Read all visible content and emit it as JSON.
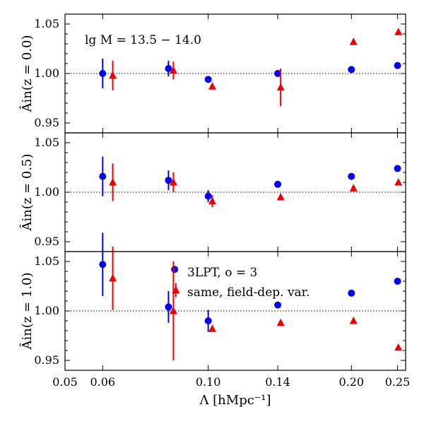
{
  "chart_data": {
    "type": "scatter",
    "x_scale": "log",
    "xlim": [
      0.05,
      0.26
    ],
    "x_ticks": [
      0.05,
      0.06,
      0.1,
      0.14,
      0.2,
      0.25
    ],
    "x_tick_labels": [
      "0.05",
      "0.06",
      "0.10",
      "0.14",
      "0.20",
      "0.25"
    ],
    "xlabel": "Λ [hMpc⁻¹]",
    "legend": {
      "placement": "center of bottom panel",
      "entries": [
        {
          "label": "3LPT, o = 3",
          "marker": "circle",
          "color": "#0000ee"
        },
        {
          "label": "same, field-dep. var.",
          "marker": "triangle",
          "color": "#ee0000"
        }
      ]
    },
    "panels": [
      {
        "ylabel": "Âin(z = 0.0)",
        "annotation": "lg M = 13.5 − 14.0",
        "ylim": [
          0.94,
          1.06
        ],
        "y_ticks": [
          0.95,
          1.0,
          1.05
        ],
        "y_tick_labels": [
          "0.95",
          "1.00",
          "1.05"
        ],
        "reference_line": 1.0,
        "series": [
          {
            "name": "3LPT, o = 3",
            "marker": "circle",
            "color": "#0000ee",
            "points": [
              {
                "x": 0.06,
                "y": 1.0,
                "err": 0.015
              },
              {
                "x": 0.0825,
                "y": 1.005,
                "err": 0.008
              },
              {
                "x": 0.1,
                "y": 0.994,
                "err": 0.0
              },
              {
                "x": 0.14,
                "y": 1.0,
                "err": 0.0
              },
              {
                "x": 0.2,
                "y": 1.004,
                "err": 0.0
              },
              {
                "x": 0.25,
                "y": 1.008,
                "err": 0.0
              }
            ]
          },
          {
            "name": "same, field-dep. var.",
            "marker": "triangle",
            "color": "#ee0000",
            "points": [
              {
                "x": 0.063,
                "y": 0.998,
                "err": 0.015
              },
              {
                "x": 0.0845,
                "y": 1.003,
                "err": 0.009
              },
              {
                "x": 0.102,
                "y": 0.987,
                "err": 0.0
              },
              {
                "x": 0.142,
                "y": 0.986,
                "err": 0.019
              },
              {
                "x": 0.202,
                "y": 1.032,
                "err": 0.0
              },
              {
                "x": 0.251,
                "y": 1.042,
                "err": 0.0
              }
            ]
          }
        ]
      },
      {
        "ylabel": "Âin(z = 0.5)",
        "annotation": "",
        "ylim": [
          0.94,
          1.06
        ],
        "y_ticks": [
          0.95,
          1.0,
          1.05
        ],
        "y_tick_labels": [
          "0.95",
          "1.00",
          "1.05"
        ],
        "reference_line": 1.0,
        "series": [
          {
            "name": "3LPT, o = 3",
            "marker": "circle",
            "color": "#0000ee",
            "points": [
              {
                "x": 0.06,
                "y": 1.016,
                "err": 0.02
              },
              {
                "x": 0.0825,
                "y": 1.012,
                "err": 0.01
              },
              {
                "x": 0.1,
                "y": 0.996,
                "err": 0.006
              },
              {
                "x": 0.14,
                "y": 1.008,
                "err": 0.0
              },
              {
                "x": 0.2,
                "y": 1.016,
                "err": 0.0
              },
              {
                "x": 0.25,
                "y": 1.024,
                "err": 0.0
              }
            ]
          },
          {
            "name": "same, field-dep. var.",
            "marker": "triangle",
            "color": "#ee0000",
            "points": [
              {
                "x": 0.063,
                "y": 1.01,
                "err": 0.019
              },
              {
                "x": 0.0845,
                "y": 1.01,
                "err": 0.01
              },
              {
                "x": 0.102,
                "y": 0.991,
                "err": 0.006
              },
              {
                "x": 0.142,
                "y": 0.995,
                "err": 0.0
              },
              {
                "x": 0.202,
                "y": 1.004,
                "err": 0.0
              },
              {
                "x": 0.251,
                "y": 1.01,
                "err": 0.0
              }
            ]
          }
        ]
      },
      {
        "ylabel": "Âin(z = 1.0)",
        "annotation": "",
        "ylim": [
          0.94,
          1.06
        ],
        "y_ticks": [
          0.95,
          1.0,
          1.05
        ],
        "y_tick_labels": [
          "0.95",
          "1.00",
          "1.05"
        ],
        "reference_line": 1.0,
        "series": [
          {
            "name": "3LPT, o = 3",
            "marker": "circle",
            "color": "#0000ee",
            "points": [
              {
                "x": 0.06,
                "y": 1.047,
                "err": 0.032
              },
              {
                "x": 0.0825,
                "y": 1.004,
                "err": 0.016
              },
              {
                "x": 0.085,
                "y": 1.042,
                "err": 0.0
              },
              {
                "x": 0.1,
                "y": 0.99,
                "err": 0.011
              },
              {
                "x": 0.14,
                "y": 1.006,
                "err": 0.0
              },
              {
                "x": 0.2,
                "y": 1.018,
                "err": 0.0
              },
              {
                "x": 0.25,
                "y": 1.03,
                "err": 0.0
              }
            ]
          },
          {
            "name": "same, field-dep. var.",
            "marker": "triangle",
            "color": "#ee0000",
            "points": [
              {
                "x": 0.063,
                "y": 1.033,
                "err": 0.032
              },
              {
                "x": 0.0845,
                "y": 1.0,
                "err": 0.05
              },
              {
                "x": 0.0855,
                "y": 1.021,
                "err": 0.007
              },
              {
                "x": 0.102,
                "y": 0.982,
                "err": 0.0
              },
              {
                "x": 0.142,
                "y": 0.988,
                "err": 0.0
              },
              {
                "x": 0.202,
                "y": 0.99,
                "err": 0.0
              },
              {
                "x": 0.251,
                "y": 0.963,
                "err": 0.0
              }
            ]
          }
        ]
      }
    ]
  }
}
